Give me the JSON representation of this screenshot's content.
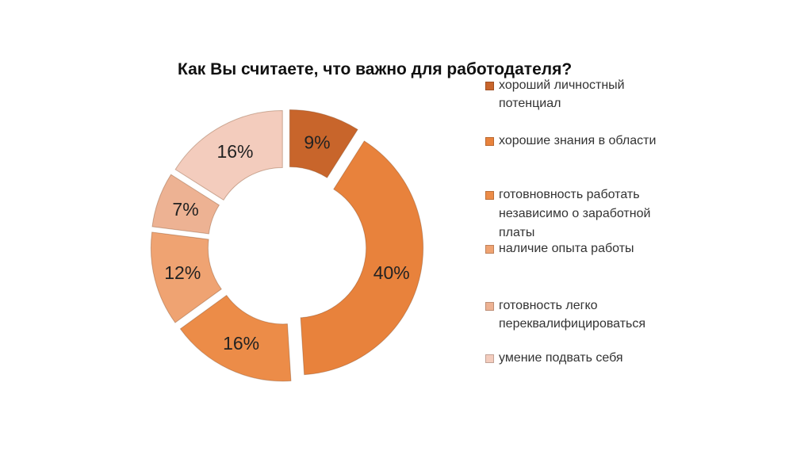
{
  "chart_data": {
    "type": "pie",
    "variant": "exploded-doughnut",
    "title": "Как Вы считаете, что важно для работодателя?",
    "categories": [
      "хороший личностный потенциал",
      "хорошие знания в области",
      "готовновность работать независимо о заработной платы",
      "наличие опыта работы",
      "готовность легко переквалифицироваться",
      "умение подвать себя"
    ],
    "values": [
      9,
      40,
      16,
      12,
      7,
      16
    ],
    "labels": [
      "9%",
      "40%",
      "16%",
      "12%",
      "7%",
      "16%"
    ],
    "colors": [
      "#c8652b",
      "#e8823c",
      "#ec8c48",
      "#efa372",
      "#edb293",
      "#f3ccbd"
    ],
    "legend_position": "right"
  }
}
